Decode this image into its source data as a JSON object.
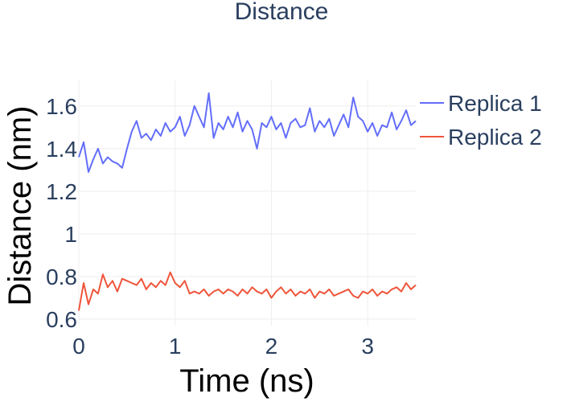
{
  "chart_data": {
    "type": "line",
    "title": "Distance",
    "xlabel": "Time (ns)",
    "ylabel": "Distance (nm)",
    "xlim": [
      0,
      3.5
    ],
    "ylim": [
      0.57,
      1.72
    ],
    "xticks": [
      0,
      1,
      2,
      3
    ],
    "xtick_labels": [
      "0",
      "1",
      "2",
      "3"
    ],
    "yticks": [
      0.6,
      0.8,
      1.0,
      1.2,
      1.4,
      1.6
    ],
    "ytick_labels": [
      "0.6",
      "0.8",
      "1",
      "1.2",
      "1.4",
      "1.6"
    ],
    "grid": true,
    "legend_position": "right",
    "series": [
      {
        "name": "Replica 1",
        "color": "#636efa",
        "x": [
          0,
          0.05,
          0.1,
          0.15,
          0.2,
          0.25,
          0.3,
          0.35,
          0.4,
          0.45,
          0.5,
          0.55,
          0.6,
          0.65,
          0.7,
          0.75,
          0.8,
          0.85,
          0.9,
          0.95,
          1.0,
          1.05,
          1.1,
          1.15,
          1.2,
          1.25,
          1.3,
          1.35,
          1.4,
          1.45,
          1.5,
          1.55,
          1.6,
          1.65,
          1.7,
          1.75,
          1.8,
          1.85,
          1.9,
          1.95,
          2.0,
          2.05,
          2.1,
          2.15,
          2.2,
          2.25,
          2.3,
          2.35,
          2.4,
          2.45,
          2.5,
          2.55,
          2.6,
          2.65,
          2.7,
          2.75,
          2.8,
          2.85,
          2.9,
          2.95,
          3.0,
          3.05,
          3.1,
          3.15,
          3.2,
          3.25,
          3.3,
          3.35,
          3.4,
          3.45,
          3.5
        ],
        "y": [
          1.36,
          1.43,
          1.29,
          1.35,
          1.4,
          1.33,
          1.36,
          1.34,
          1.33,
          1.31,
          1.4,
          1.48,
          1.53,
          1.45,
          1.47,
          1.44,
          1.49,
          1.46,
          1.52,
          1.48,
          1.5,
          1.55,
          1.46,
          1.51,
          1.6,
          1.55,
          1.5,
          1.66,
          1.45,
          1.52,
          1.49,
          1.55,
          1.5,
          1.57,
          1.48,
          1.53,
          1.49,
          1.4,
          1.52,
          1.5,
          1.55,
          1.49,
          1.52,
          1.45,
          1.52,
          1.54,
          1.5,
          1.51,
          1.59,
          1.48,
          1.53,
          1.5,
          1.54,
          1.46,
          1.51,
          1.56,
          1.5,
          1.64,
          1.55,
          1.53,
          1.48,
          1.52,
          1.46,
          1.51,
          1.5,
          1.57,
          1.49,
          1.53,
          1.58,
          1.51,
          1.53
        ]
      },
      {
        "name": "Replica 2",
        "color": "#ef553b",
        "x": [
          0,
          0.05,
          0.1,
          0.15,
          0.2,
          0.25,
          0.3,
          0.35,
          0.4,
          0.45,
          0.5,
          0.55,
          0.6,
          0.65,
          0.7,
          0.75,
          0.8,
          0.85,
          0.9,
          0.95,
          1.0,
          1.05,
          1.1,
          1.15,
          1.2,
          1.25,
          1.3,
          1.35,
          1.4,
          1.45,
          1.5,
          1.55,
          1.6,
          1.65,
          1.7,
          1.75,
          1.8,
          1.85,
          1.9,
          1.95,
          2.0,
          2.05,
          2.1,
          2.15,
          2.2,
          2.25,
          2.3,
          2.35,
          2.4,
          2.45,
          2.5,
          2.55,
          2.6,
          2.65,
          2.7,
          2.75,
          2.8,
          2.85,
          2.9,
          2.95,
          3.0,
          3.05,
          3.1,
          3.15,
          3.2,
          3.25,
          3.3,
          3.35,
          3.4,
          3.45,
          3.5
        ],
        "y": [
          0.64,
          0.77,
          0.67,
          0.74,
          0.72,
          0.81,
          0.75,
          0.78,
          0.73,
          0.79,
          0.78,
          0.77,
          0.76,
          0.79,
          0.74,
          0.77,
          0.75,
          0.78,
          0.76,
          0.82,
          0.77,
          0.75,
          0.78,
          0.72,
          0.73,
          0.72,
          0.74,
          0.71,
          0.73,
          0.74,
          0.72,
          0.74,
          0.73,
          0.71,
          0.74,
          0.72,
          0.75,
          0.73,
          0.72,
          0.74,
          0.7,
          0.73,
          0.75,
          0.72,
          0.74,
          0.71,
          0.73,
          0.72,
          0.74,
          0.7,
          0.73,
          0.72,
          0.74,
          0.71,
          0.72,
          0.73,
          0.74,
          0.71,
          0.7,
          0.73,
          0.72,
          0.74,
          0.71,
          0.73,
          0.72,
          0.74,
          0.75,
          0.73,
          0.77,
          0.74,
          0.76
        ]
      }
    ]
  }
}
